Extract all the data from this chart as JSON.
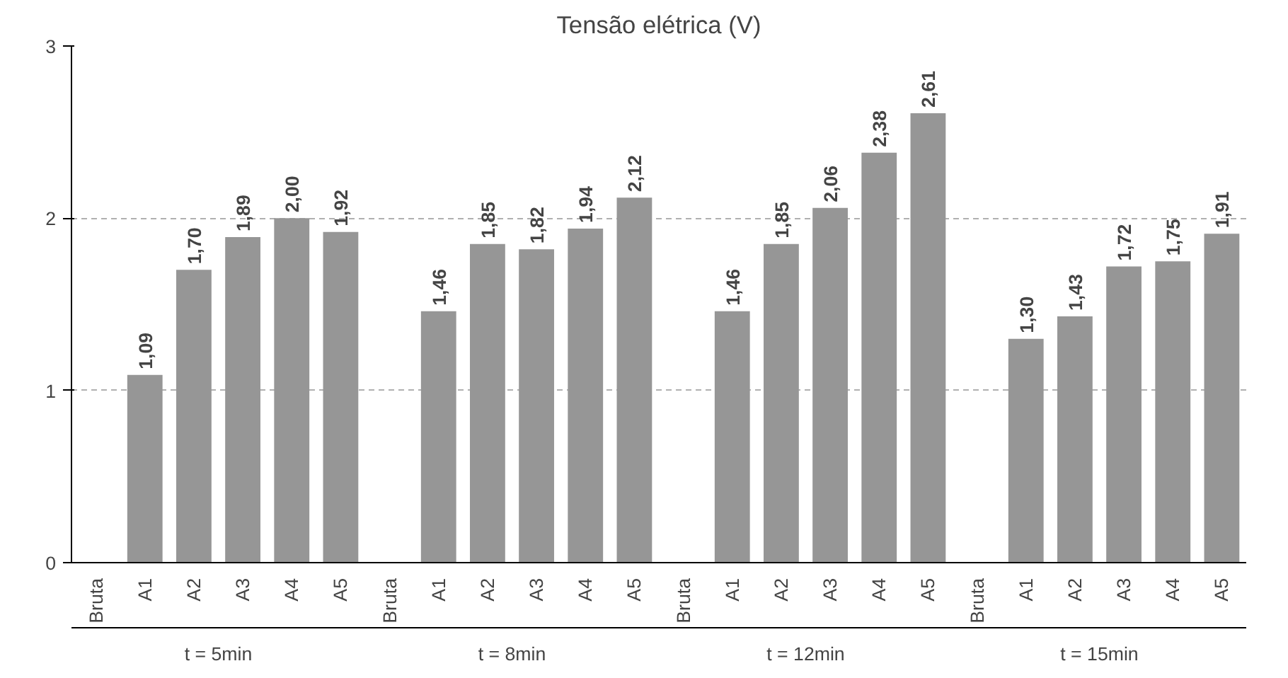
{
  "chart_data": {
    "type": "bar",
    "title": "Tensão elétrica (V)",
    "categories": [
      "Bruta",
      "A1",
      "A2",
      "A3",
      "A4",
      "A5",
      "Bruta",
      "A1",
      "A2",
      "A3",
      "A4",
      "A5",
      "Bruta",
      "A1",
      "A2",
      "A3",
      "A4",
      "A5",
      "Bruta",
      "A1",
      "A2",
      "A3",
      "A4",
      "A5"
    ],
    "values": [
      null,
      1.09,
      1.7,
      1.89,
      2.0,
      1.92,
      null,
      1.46,
      1.85,
      1.82,
      1.94,
      2.12,
      null,
      1.46,
      1.85,
      2.06,
      2.38,
      2.61,
      null,
      1.3,
      1.43,
      1.72,
      1.75,
      1.91
    ],
    "color": "#969696",
    "ylim": [
      0,
      3
    ],
    "yticks": [
      0,
      1,
      2,
      3
    ],
    "grid": "y",
    "value_labels": [
      null,
      "1,09",
      "1,70",
      "1,89",
      "2,00",
      "1,92",
      null,
      "1,46",
      "1,85",
      "1,82",
      "1,94",
      "2,12",
      null,
      "1,46",
      "1,85",
      "2,06",
      "2,38",
      "2,61",
      null,
      "1,30",
      "1,43",
      "1,72",
      "1,75",
      "1,91"
    ],
    "annotations": [
      "t = 5min",
      "t = 8min",
      "t = 12min",
      "t = 15min"
    ]
  }
}
